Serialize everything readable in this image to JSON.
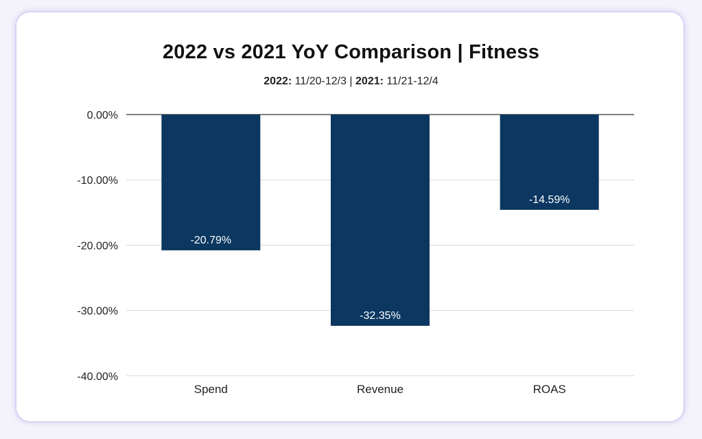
{
  "colors": {
    "bar": "#0b3760",
    "grid": "#d8d8d8",
    "zero_line": "#555555",
    "card_border": "#d9d3f3"
  },
  "chart_data": {
    "type": "bar",
    "title": "2022 vs 2021 YoY Comparison | Fitness",
    "subtitle": {
      "label_2022": "2022:",
      "range_2022": "11/20-12/3",
      "separator": "|",
      "label_2021": "2021:",
      "range_2021": "11/21-12/4"
    },
    "categories": [
      "Spend",
      "Revenue",
      "ROAS"
    ],
    "values": [
      -20.79,
      -32.35,
      -14.59
    ],
    "data_labels": [
      "-20.79%",
      "-32.35%",
      "-14.59%"
    ],
    "ylim": [
      -40,
      0
    ],
    "yticks": [
      0,
      -10,
      -20,
      -30,
      -40
    ],
    "ytick_labels": [
      "0.00%",
      "-10.00%",
      "-20.00%",
      "-30.00%",
      "-40.00%"
    ],
    "grid": true,
    "legend": "none"
  }
}
